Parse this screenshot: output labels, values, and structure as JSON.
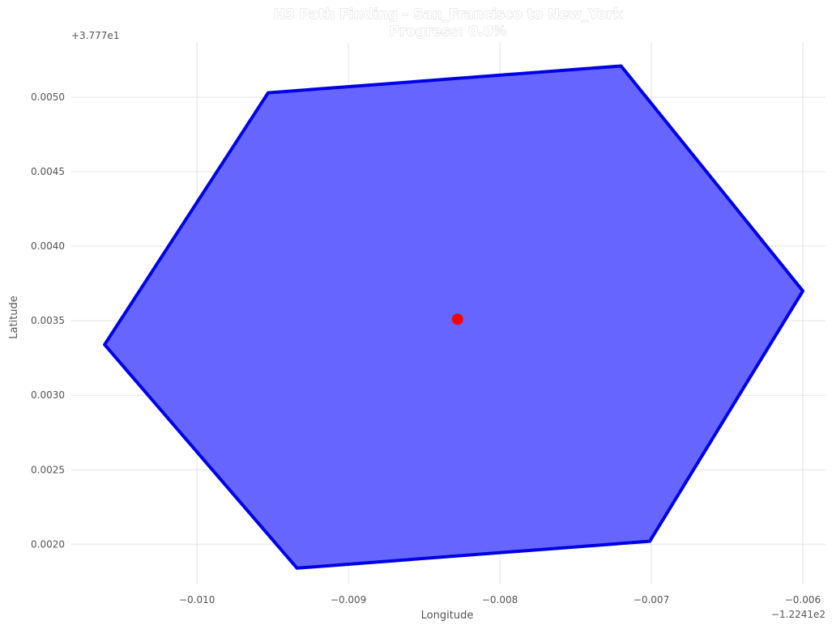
{
  "chart_data": {
    "type": "scatter",
    "title": "H3 Path Finding - San_Francisco to New_York",
    "subtitle": "Progress: 0.0%",
    "xlabel": "Longitude",
    "ylabel": "Latitude",
    "x_offset_text": "−1.2241e2",
    "y_offset_text": "+3.777e1",
    "xlim": [
      -0.01083,
      -0.00585
    ],
    "ylim": [
      0.00173,
      0.00537
    ],
    "x_ticks": [
      -0.01,
      -0.009,
      -0.008,
      -0.007,
      -0.006
    ],
    "x_tick_labels": [
      "−0.010",
      "−0.009",
      "−0.008",
      "−0.007",
      "−0.006"
    ],
    "y_ticks": [
      0.002,
      0.0025,
      0.003,
      0.0035,
      0.004,
      0.0045,
      0.005
    ],
    "y_tick_labels": [
      "0.0020",
      "0.0025",
      "0.0030",
      "0.0035",
      "0.0040",
      "0.0045",
      "0.0050"
    ],
    "grid": true,
    "hexagon": {
      "fill_color": "#6666ff",
      "edge_color": "#0000e6",
      "vertices": [
        [
          -0.00953,
          0.00503
        ],
        [
          -0.0072,
          0.00521
        ],
        [
          -0.006,
          0.0037
        ],
        [
          -0.00701,
          0.00202
        ],
        [
          -0.00934,
          0.00184
        ],
        [
          -0.01061,
          0.00334
        ]
      ]
    },
    "point": {
      "x": -0.00828,
      "y": 0.00351,
      "color": "#ff0000"
    }
  }
}
